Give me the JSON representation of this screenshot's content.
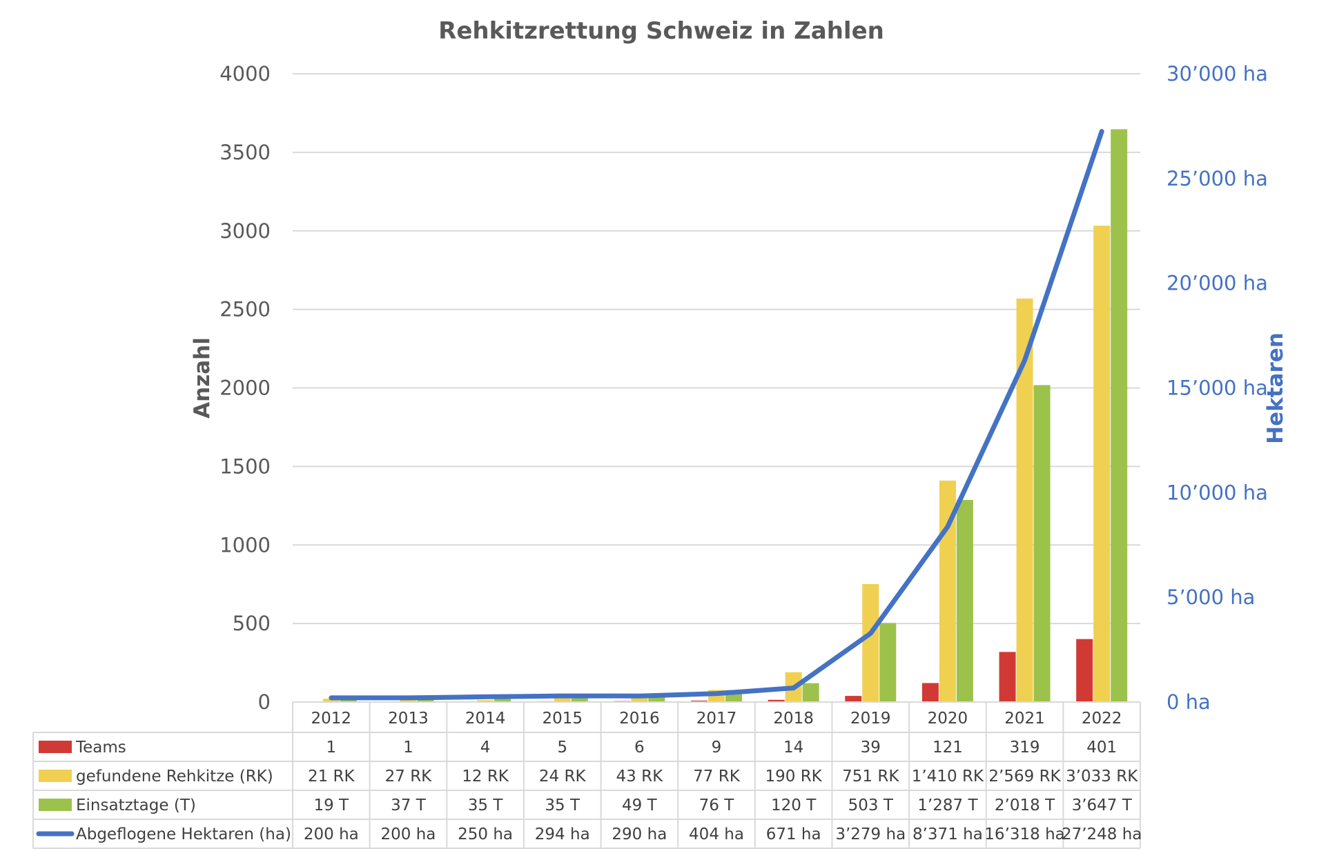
{
  "chart_data": {
    "type": "bar",
    "title": "Rehkitzrettung Schweiz in Zahlen",
    "ylabel": "Anzahl",
    "y2label": "Hektaren",
    "ylim": [
      0,
      4000
    ],
    "y2lim": [
      0,
      30000
    ],
    "yticks": [
      "0",
      "500",
      "1000",
      "1500",
      "2000",
      "2500",
      "3000",
      "3500",
      "4000"
    ],
    "y2ticks": [
      "0 ha",
      "5’000 ha",
      "10’000 ha",
      "15’000 ha",
      "20’000 ha",
      "25’000 ha",
      "30’000 ha"
    ],
    "categories": [
      "2012",
      "2013",
      "2014",
      "2015",
      "2016",
      "2017",
      "2018",
      "2019",
      "2020",
      "2021",
      "2022"
    ],
    "series": [
      {
        "name": "Teams",
        "type": "bar",
        "axis": "left",
        "color": "#D13A34",
        "values": [
          1,
          1,
          4,
          5,
          6,
          9,
          14,
          39,
          121,
          319,
          401
        ],
        "labels": [
          "1",
          "1",
          "4",
          "5",
          "6",
          "9",
          "14",
          "39",
          "121",
          "319",
          "401"
        ]
      },
      {
        "name": "gefundene Rehkitze (RK)",
        "type": "bar",
        "axis": "left",
        "color": "#F0D050",
        "values": [
          21,
          27,
          12,
          24,
          43,
          77,
          190,
          751,
          1410,
          2569,
          3033
        ],
        "labels": [
          "21 RK",
          "27 RK",
          "12 RK",
          "24 RK",
          "43 RK",
          "77 RK",
          "190 RK",
          "751 RK",
          "1’410 RK",
          "2’569 RK",
          "3’033 RK"
        ]
      },
      {
        "name": "Einsatztage (T)",
        "type": "bar",
        "axis": "left",
        "color": "#9CC24C",
        "values": [
          19,
          37,
          35,
          35,
          49,
          76,
          120,
          503,
          1287,
          2018,
          3647
        ],
        "labels": [
          "19 T",
          "37 T",
          "35 T",
          "35 T",
          "49 T",
          "76 T",
          "120 T",
          "503 T",
          "1’287 T",
          "2’018 T",
          "3’647 T"
        ]
      },
      {
        "name": "Abgeflogene Hektaren (ha)",
        "type": "line",
        "axis": "right",
        "color": "#4472C4",
        "values": [
          200,
          200,
          250,
          294,
          290,
          404,
          671,
          3279,
          8371,
          16318,
          27248
        ],
        "labels": [
          "200 ha",
          "200 ha",
          "250 ha",
          "294 ha",
          "290 ha",
          "404 ha",
          "671 ha",
          "3’279 ha",
          "8’371 ha",
          "16’318 ha",
          "27’248 ha"
        ]
      }
    ],
    "grid": true,
    "legend": "data-table"
  }
}
